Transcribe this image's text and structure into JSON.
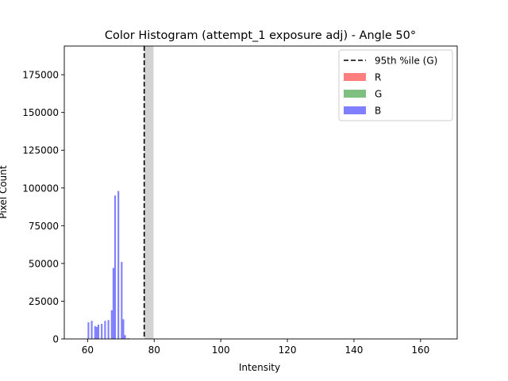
{
  "chart_data": {
    "type": "bar",
    "title": "Color Histogram (attempt_1 exposure adj) - Angle 50°",
    "xlabel": "Intensity",
    "ylabel": "Pixel Count",
    "xlim": [
      53,
      171
    ],
    "ylim": [
      0,
      194000
    ],
    "xticks": [
      60,
      80,
      100,
      120,
      140,
      160
    ],
    "yticks": [
      0,
      25000,
      50000,
      75000,
      100000,
      125000,
      150000,
      175000
    ],
    "bin_width": 0.5,
    "series": [
      {
        "name": "R",
        "color": "#ff0000",
        "alpha": 0.5,
        "x": [],
        "values": []
      },
      {
        "name": "G",
        "color": "#008000",
        "alpha": 0.5,
        "x": [],
        "values": []
      },
      {
        "name": "B",
        "color": "#0000ff",
        "alpha": 0.5,
        "x": [
          60,
          61,
          62,
          62.5,
          63,
          64,
          65,
          66,
          67,
          67.5,
          68,
          69,
          70,
          70.5,
          71,
          72
        ],
        "values": [
          11000,
          12000,
          8500,
          8000,
          9500,
          10000,
          12000,
          12500,
          19000,
          47000,
          95000,
          98000,
          51000,
          13000,
          2500,
          500
        ]
      }
    ],
    "vline": {
      "x": 77,
      "label": "95th %ile (G)",
      "color": "#000000",
      "style": "dashed"
    },
    "vspan": {
      "x0": 77,
      "x1": 79.8,
      "color": "#d3d3d3"
    },
    "legend": {
      "position": "top-right",
      "entries": [
        {
          "label": "95th %ile (G)",
          "kind": "line",
          "color": "#000000"
        },
        {
          "label": "R",
          "kind": "patch",
          "color": "#ff0000"
        },
        {
          "label": "G",
          "kind": "patch",
          "color": "#008000"
        },
        {
          "label": "B",
          "kind": "patch",
          "color": "#0000ff"
        }
      ]
    }
  }
}
